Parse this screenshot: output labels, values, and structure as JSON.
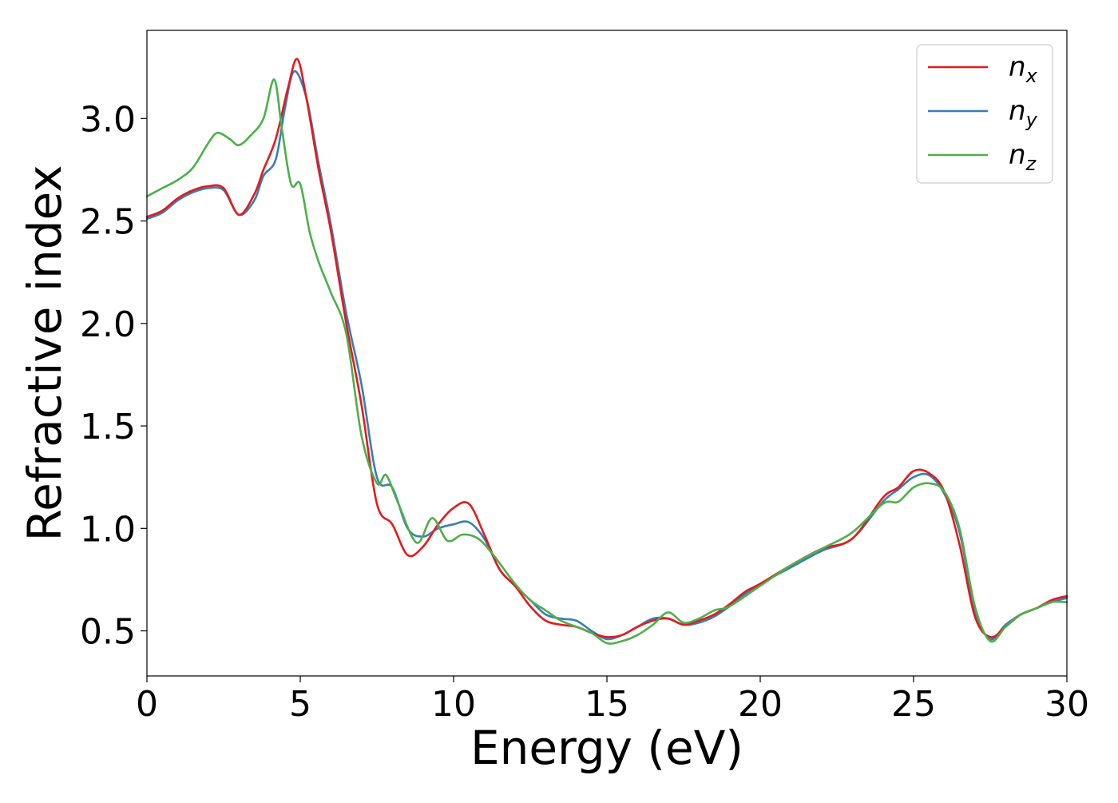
{
  "chart_data": {
    "type": "line",
    "title": "",
    "xlabel": "Energy (eV)",
    "ylabel": "Refractive index",
    "xlim": [
      0,
      30
    ],
    "ylim": [
      0.28,
      3.43
    ],
    "xticks": [
      0,
      5,
      10,
      15,
      20,
      25,
      30
    ],
    "xtick_labels": [
      "0",
      "5",
      "10",
      "15",
      "20",
      "25",
      "30"
    ],
    "yticks": [
      0.5,
      1.0,
      1.5,
      2.0,
      2.5,
      3.0
    ],
    "ytick_labels": [
      "0.5",
      "1.0",
      "1.5",
      "2.0",
      "2.5",
      "3.0"
    ],
    "grid": false,
    "legend_position": "top-right",
    "series": [
      {
        "name": "n_x",
        "label_base": "n",
        "label_sub": "x",
        "color": "#e41a1c",
        "x": [
          0,
          0.5,
          1,
          1.5,
          2,
          2.5,
          3,
          3.5,
          3.8,
          4.2,
          4.6,
          4.9,
          5.2,
          5.6,
          6,
          6.5,
          7,
          7.5,
          8,
          8.5,
          9,
          9.5,
          10,
          10.5,
          11,
          11.5,
          12,
          12.5,
          13,
          13.5,
          14,
          14.5,
          15,
          15.5,
          16,
          16.5,
          17,
          17.5,
          18,
          18.5,
          19,
          19.5,
          20,
          21,
          22,
          23,
          24,
          24.5,
          25,
          25.5,
          26,
          26.5,
          27,
          27.5,
          28,
          28.5,
          29,
          29.5,
          30
        ],
        "y": [
          2.52,
          2.55,
          2.61,
          2.65,
          2.67,
          2.66,
          2.53,
          2.63,
          2.75,
          2.9,
          3.15,
          3.29,
          3.1,
          2.75,
          2.45,
          2.0,
          1.6,
          1.12,
          1.02,
          0.87,
          0.91,
          1.02,
          1.1,
          1.12,
          0.97,
          0.8,
          0.72,
          0.62,
          0.55,
          0.53,
          0.52,
          0.49,
          0.47,
          0.48,
          0.52,
          0.55,
          0.56,
          0.53,
          0.55,
          0.58,
          0.63,
          0.69,
          0.73,
          0.82,
          0.9,
          0.95,
          1.15,
          1.2,
          1.28,
          1.27,
          1.18,
          0.92,
          0.57,
          0.47,
          0.52,
          0.58,
          0.61,
          0.65,
          0.67
        ]
      },
      {
        "name": "n_y",
        "label_base": "n",
        "label_sub": "y",
        "color": "#377eb8",
        "x": [
          0,
          0.5,
          1,
          1.5,
          2,
          2.5,
          3,
          3.5,
          3.8,
          4.2,
          4.5,
          4.8,
          5.2,
          5.6,
          6,
          6.5,
          7,
          7.5,
          8,
          8.5,
          9,
          9.5,
          10,
          10.5,
          11,
          11.5,
          12,
          12.5,
          13,
          13.5,
          14,
          14.5,
          15,
          15.5,
          16,
          16.5,
          17,
          17.5,
          18,
          18.5,
          19,
          19.5,
          20,
          21,
          22,
          23,
          24,
          24.5,
          25,
          25.5,
          26,
          26.5,
          27,
          27.5,
          28,
          28.5,
          29,
          29.5,
          30
        ],
        "y": [
          2.51,
          2.54,
          2.6,
          2.64,
          2.66,
          2.65,
          2.53,
          2.6,
          2.72,
          2.8,
          3.05,
          3.23,
          3.1,
          2.78,
          2.48,
          2.05,
          1.7,
          1.25,
          1.2,
          1.0,
          0.96,
          1.0,
          1.02,
          1.03,
          0.95,
          0.8,
          0.72,
          0.65,
          0.58,
          0.56,
          0.55,
          0.5,
          0.46,
          0.48,
          0.52,
          0.56,
          0.56,
          0.53,
          0.54,
          0.57,
          0.62,
          0.68,
          0.73,
          0.81,
          0.89,
          0.95,
          1.13,
          1.19,
          1.25,
          1.26,
          1.17,
          0.98,
          0.6,
          0.46,
          0.53,
          0.58,
          0.61,
          0.64,
          0.66
        ]
      },
      {
        "name": "n_z",
        "label_base": "n",
        "label_sub": "z",
        "color": "#4daf4a",
        "x": [
          0,
          0.5,
          1,
          1.5,
          2,
          2.3,
          2.7,
          3,
          3.4,
          3.8,
          4.15,
          4.4,
          4.7,
          5.0,
          5.3,
          5.6,
          6,
          6.5,
          7,
          7.5,
          7.8,
          8.2,
          8.8,
          9.3,
          9.8,
          10.3,
          10.8,
          11.3,
          12,
          12.5,
          13,
          13.5,
          14,
          14.5,
          15,
          15.5,
          16,
          16.5,
          17,
          17.5,
          18,
          18.5,
          19,
          20,
          21,
          22,
          23,
          24,
          24.5,
          25,
          25.5,
          26,
          26.5,
          27,
          27.5,
          28,
          28.5,
          29,
          29.5,
          30
        ],
        "y": [
          2.62,
          2.66,
          2.7,
          2.76,
          2.88,
          2.93,
          2.9,
          2.87,
          2.92,
          3.0,
          3.19,
          2.95,
          2.68,
          2.68,
          2.45,
          2.3,
          2.15,
          1.95,
          1.45,
          1.22,
          1.26,
          1.12,
          0.93,
          1.05,
          0.94,
          0.97,
          0.95,
          0.87,
          0.73,
          0.65,
          0.6,
          0.55,
          0.52,
          0.49,
          0.44,
          0.45,
          0.48,
          0.53,
          0.59,
          0.54,
          0.56,
          0.6,
          0.62,
          0.72,
          0.82,
          0.9,
          0.98,
          1.12,
          1.13,
          1.2,
          1.22,
          1.18,
          1.0,
          0.62,
          0.45,
          0.52,
          0.58,
          0.61,
          0.64,
          0.64
        ]
      }
    ]
  }
}
